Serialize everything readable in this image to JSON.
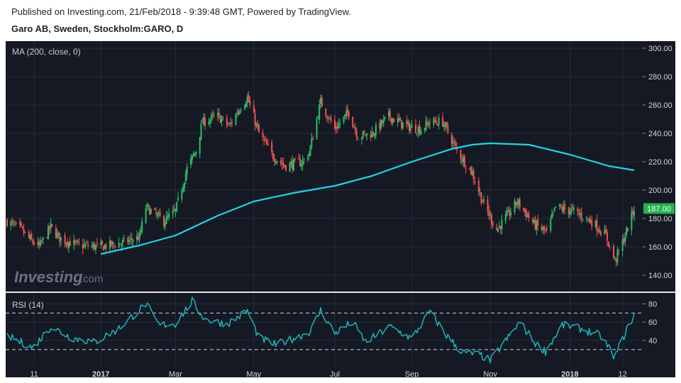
{
  "header": {
    "published": "Published on Investing.com, 21/Feb/2018 - 9:39:48 GMT, Powered by TradingView.",
    "symbol": "Garo AB, Sweden, Stockholm:GARO, D"
  },
  "watermark": {
    "text": "Investing",
    "suffix": ".com"
  },
  "colors": {
    "background": "#151924",
    "up": "#26a69a",
    "up_candle": "#2ebd6b",
    "down": "#ef5350",
    "ma": "#20d3e8",
    "rsi": "#1fb3b8",
    "grid": "#262b38",
    "text": "#d1d4dc",
    "last_price_bg": "#26b24e"
  },
  "chart_data": [
    {
      "type": "candlestick",
      "indicator_label": "MA (200, close, 0)",
      "last_price": 187.0,
      "last_price_label": "187.00",
      "ylim": [
        128,
        305
      ],
      "y_ticks": [
        "300.00",
        "280.00",
        "260.00",
        "240.00",
        "220.00",
        "200.00",
        "180.00",
        "160.00",
        "140.00"
      ],
      "y_tick_values": [
        300,
        280,
        260,
        240,
        220,
        200,
        180,
        160,
        140
      ],
      "x_ticks": [
        "11",
        "2017",
        "Mar",
        "May",
        "Jul",
        "Sep",
        "Nov",
        "2018",
        "12"
      ],
      "x_tick_dates": [
        "2016-11-11",
        "2017-01-02",
        "2017-03-01",
        "2017-05-01",
        "2017-07-03",
        "2017-09-01",
        "2017-11-01",
        "2018-01-02",
        "2018-02-12"
      ],
      "x_range": [
        "2016-10-21",
        "2018-02-21"
      ],
      "close_path": [
        [
          "2016-10-21",
          178
        ],
        [
          "2016-11-01",
          172
        ],
        [
          "2016-11-08",
          165
        ],
        [
          "2016-11-15",
          160
        ],
        [
          "2016-11-24",
          174
        ],
        [
          "2016-12-01",
          166
        ],
        [
          "2016-12-15",
          161
        ],
        [
          "2017-01-02",
          160
        ],
        [
          "2017-01-20",
          163
        ],
        [
          "2017-02-01",
          167
        ],
        [
          "2017-02-06",
          188
        ],
        [
          "2017-02-20",
          178
        ],
        [
          "2017-03-01",
          185
        ],
        [
          "2017-03-10",
          215
        ],
        [
          "2017-03-17",
          228
        ],
        [
          "2017-03-22",
          248
        ],
        [
          "2017-04-03",
          252
        ],
        [
          "2017-04-12",
          245
        ],
        [
          "2017-04-20",
          258
        ],
        [
          "2017-04-26",
          265
        ],
        [
          "2017-05-05",
          240
        ],
        [
          "2017-05-15",
          225
        ],
        [
          "2017-05-25",
          217
        ],
        [
          "2017-06-08",
          220
        ],
        [
          "2017-06-13",
          226
        ],
        [
          "2017-06-22",
          262
        ],
        [
          "2017-07-03",
          243
        ],
        [
          "2017-07-14",
          255
        ],
        [
          "2017-07-21",
          238
        ],
        [
          "2017-08-01",
          240
        ],
        [
          "2017-08-14",
          252
        ],
        [
          "2017-08-28",
          245
        ],
        [
          "2017-09-08",
          243
        ],
        [
          "2017-09-15",
          248
        ],
        [
          "2017-09-25",
          248
        ],
        [
          "2017-10-06",
          228
        ],
        [
          "2017-10-18",
          212
        ],
        [
          "2017-10-26",
          192
        ],
        [
          "2017-11-06",
          172
        ],
        [
          "2017-11-17",
          185
        ],
        [
          "2017-11-22",
          192
        ],
        [
          "2017-12-05",
          176
        ],
        [
          "2017-12-15",
          170
        ],
        [
          "2017-12-22",
          188
        ],
        [
          "2018-01-05",
          185
        ],
        [
          "2018-01-19",
          178
        ],
        [
          "2018-01-30",
          168
        ],
        [
          "2018-02-06",
          150
        ],
        [
          "2018-02-14",
          168
        ],
        [
          "2018-02-21",
          187
        ]
      ],
      "ma_200": [
        [
          "2017-01-02",
          155
        ],
        [
          "2017-02-01",
          161
        ],
        [
          "2017-03-01",
          168
        ],
        [
          "2017-04-03",
          182
        ],
        [
          "2017-05-01",
          192
        ],
        [
          "2017-06-01",
          198
        ],
        [
          "2017-07-03",
          203
        ],
        [
          "2017-08-01",
          210
        ],
        [
          "2017-09-01",
          220
        ],
        [
          "2017-10-02",
          229
        ],
        [
          "2017-10-18",
          232
        ],
        [
          "2017-11-01",
          233
        ],
        [
          "2017-12-01",
          232
        ],
        [
          "2018-01-02",
          225
        ],
        [
          "2018-02-01",
          217
        ],
        [
          "2018-02-21",
          214
        ]
      ]
    },
    {
      "type": "line",
      "indicator_label": "RSI (14)",
      "ylim": [
        12,
        92
      ],
      "y_ticks": [
        "80",
        "60",
        "40"
      ],
      "y_tick_values": [
        80,
        60,
        40
      ],
      "bands": [
        70,
        30
      ],
      "rsi_path": [
        [
          "2016-10-21",
          45
        ],
        [
          "2016-11-01",
          38
        ],
        [
          "2016-11-10",
          32
        ],
        [
          "2016-11-24",
          55
        ],
        [
          "2016-12-10",
          43
        ],
        [
          "2016-12-28",
          38
        ],
        [
          "2017-01-16",
          53
        ],
        [
          "2017-02-06",
          80
        ],
        [
          "2017-02-16",
          57
        ],
        [
          "2017-03-01",
          58
        ],
        [
          "2017-03-14",
          83
        ],
        [
          "2017-03-24",
          63
        ],
        [
          "2017-04-10",
          58
        ],
        [
          "2017-04-26",
          72
        ],
        [
          "2017-05-05",
          43
        ],
        [
          "2017-05-18",
          35
        ],
        [
          "2017-06-06",
          45
        ],
        [
          "2017-06-14",
          50
        ],
        [
          "2017-06-22",
          73
        ],
        [
          "2017-07-03",
          48
        ],
        [
          "2017-07-17",
          60
        ],
        [
          "2017-07-27",
          38
        ],
        [
          "2017-08-15",
          55
        ],
        [
          "2017-09-01",
          42
        ],
        [
          "2017-09-15",
          72
        ],
        [
          "2017-09-27",
          47
        ],
        [
          "2017-10-10",
          27
        ],
        [
          "2017-10-24",
          24
        ],
        [
          "2017-11-01",
          18
        ],
        [
          "2017-11-16",
          45
        ],
        [
          "2017-11-24",
          60
        ],
        [
          "2017-12-06",
          37
        ],
        [
          "2017-12-14",
          28
        ],
        [
          "2017-12-27",
          57
        ],
        [
          "2018-01-10",
          53
        ],
        [
          "2018-01-26",
          45
        ],
        [
          "2018-02-06",
          22
        ],
        [
          "2018-02-14",
          48
        ],
        [
          "2018-02-21",
          68
        ]
      ]
    }
  ]
}
